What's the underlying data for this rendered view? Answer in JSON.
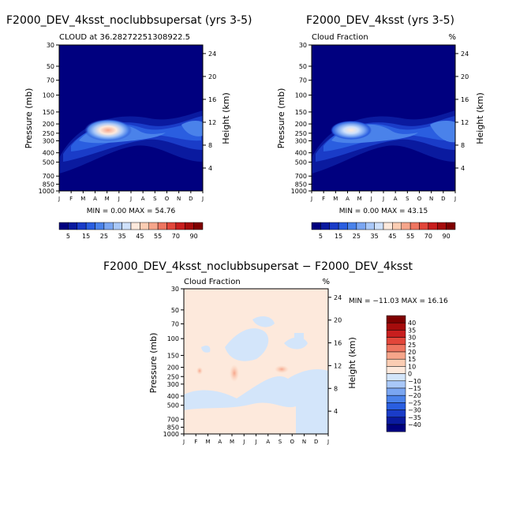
{
  "chart_data": [
    {
      "type": "heatmap",
      "title": "F2000_DEV_4ksst_noclubbsupersat (yrs 3-5)",
      "subtitle_left": "CLOUD at 36.28272251308922.5",
      "subtitle_right": "%",
      "xlabel": "",
      "ylabel": "Pressure (mb)",
      "ylabel_right": "Height (km)",
      "x_ticks": [
        "J",
        "F",
        "M",
        "A",
        "M",
        "J",
        "J",
        "A",
        "S",
        "O",
        "N",
        "D",
        "J"
      ],
      "y_ticks": [
        "30",
        "50",
        "70",
        "100",
        "150",
        "200",
        "250",
        "300",
        "400",
        "500",
        "700",
        "850",
        "1000"
      ],
      "y_right_ticks": [
        "24",
        "20",
        "16",
        "12",
        "8",
        "4"
      ],
      "ylim": [
        1000,
        30
      ],
      "min_max_text": "MIN =      0.00 MAX =    54.76",
      "min": 0.0,
      "max": 54.76,
      "colorbar_labels": [
        "5",
        "15",
        "25",
        "35",
        "45",
        "55",
        "70",
        "90"
      ],
      "colorbar_colors": [
        "#00007f",
        "#0a1a9f",
        "#1a3cc8",
        "#2a5ee0",
        "#4a82ea",
        "#7aa6f2",
        "#a9c8f8",
        "#cfe1fb",
        "#fde9dc",
        "#fbcdb3",
        "#f6a58a",
        "#ee7560",
        "#e2463a",
        "#c81e1e",
        "#a60c0c",
        "#7f0000"
      ],
      "peak_value": 54.76
    },
    {
      "type": "heatmap",
      "title": "F2000_DEV_4ksst (yrs 3-5)",
      "subtitle_left": "Cloud Fraction",
      "subtitle_right": "%",
      "xlabel": "",
      "ylabel": "Pressure (mb)",
      "ylabel_right": "Height (km)",
      "x_ticks": [
        "J",
        "F",
        "M",
        "A",
        "M",
        "J",
        "J",
        "A",
        "S",
        "O",
        "N",
        "D",
        "J"
      ],
      "y_ticks": [
        "30",
        "50",
        "70",
        "100",
        "150",
        "200",
        "250",
        "300",
        "400",
        "500",
        "700",
        "850",
        "1000"
      ],
      "y_right_ticks": [
        "24",
        "20",
        "16",
        "12",
        "8",
        "4"
      ],
      "ylim": [
        1000,
        30
      ],
      "min_max_text": "MIN =      0.00 MAX =    43.15",
      "min": 0.0,
      "max": 43.15,
      "colorbar_labels": [
        "5",
        "15",
        "25",
        "35",
        "45",
        "55",
        "70",
        "90"
      ],
      "peak_value": 43.15
    },
    {
      "type": "heatmap",
      "title": "F2000_DEV_4ksst_noclubbsupersat − F2000_DEV_4ksst",
      "subtitle_left": "Cloud Fraction",
      "subtitle_right": "%",
      "xlabel": "",
      "ylabel": "Pressure (mb)",
      "ylabel_right": "Height (km)",
      "x_ticks": [
        "J",
        "F",
        "M",
        "A",
        "M",
        "J",
        "J",
        "A",
        "S",
        "O",
        "N",
        "D",
        "J"
      ],
      "y_ticks": [
        "30",
        "50",
        "70",
        "100",
        "150",
        "200",
        "250",
        "300",
        "400",
        "500",
        "700",
        "850",
        "1000"
      ],
      "y_right_ticks": [
        "24",
        "20",
        "16",
        "12",
        "8",
        "4"
      ],
      "ylim": [
        1000,
        30
      ],
      "min_max_text": "MIN = −11.03 MAX =   16.16",
      "min": -11.03,
      "max": 16.16,
      "colorbar_labels": [
        "40",
        "35",
        "30",
        "25",
        "20",
        "15",
        "10",
        "0",
        "−10",
        "−15",
        "−20",
        "−25",
        "−30",
        "−35",
        "−40"
      ],
      "colorbar_colors": [
        "#7f0000",
        "#a60c0c",
        "#c81e1e",
        "#e2463a",
        "#ee7560",
        "#f6a58a",
        "#fbcdb3",
        "#fde9dc",
        "#d3e5fa",
        "#a9c8f8",
        "#7aa6f2",
        "#4a82ea",
        "#2a5ee0",
        "#1a3cc8",
        "#0a1a9f",
        "#00007f"
      ]
    }
  ]
}
